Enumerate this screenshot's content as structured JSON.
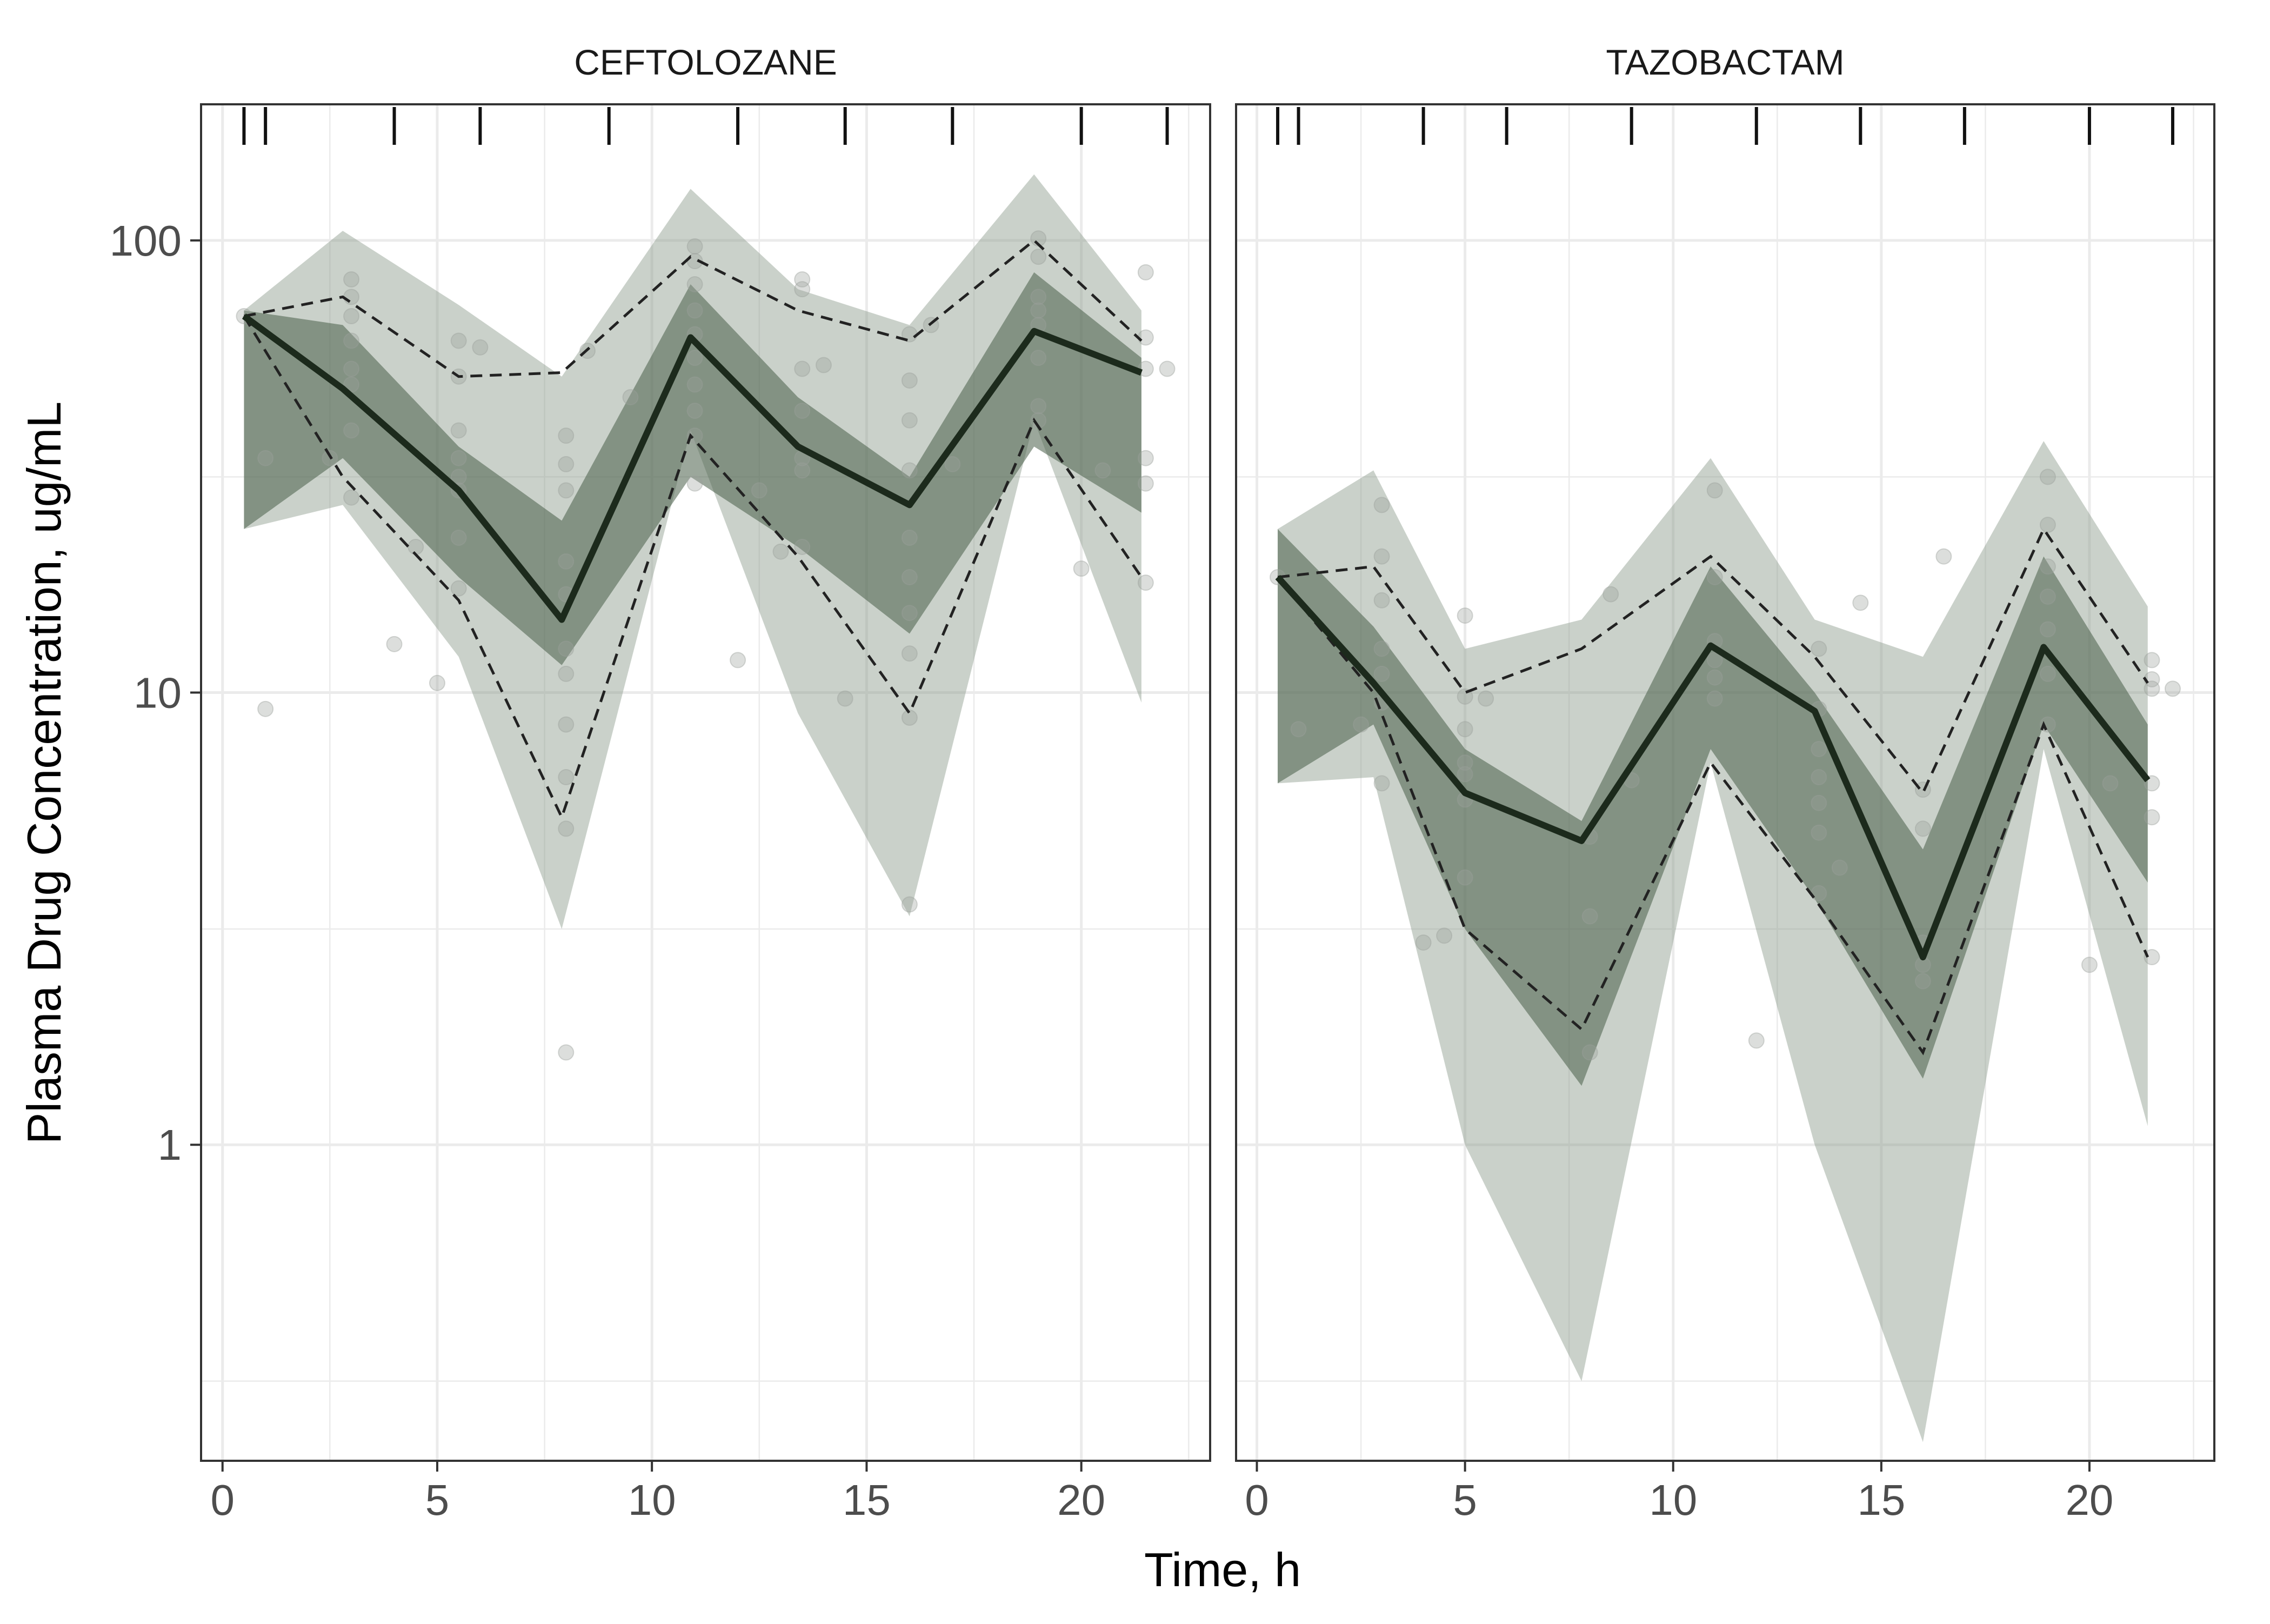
{
  "chart_data": {
    "type": "line",
    "title": "",
    "xlabel": "Time, h",
    "ylabel": "Plasma Drug Concentration, ug/mL",
    "xlim": [
      -0.5,
      23.0
    ],
    "ylim": [
      0.2,
      200
    ],
    "yscale": "log10",
    "x_ticks": [
      0,
      5,
      10,
      15,
      20
    ],
    "x_tick_labels": [
      "0",
      "5",
      "10",
      "15",
      "20"
    ],
    "y_ticks": [
      1,
      10,
      100
    ],
    "y_tick_labels": [
      "1",
      "10",
      "100"
    ],
    "y_minor_ticks": [
      0.3,
      3,
      30
    ],
    "colors": {
      "outer_band": "#8a9a8a",
      "inner_band": "#485e48",
      "median_line": "#1c2a1c",
      "points": "#9aa09a",
      "dashed": "#222222",
      "grid": "#ebebeb",
      "panel_border": "#333333"
    },
    "panels": [
      {
        "name": "CEFTOLOZANE",
        "rug_times": [
          0.5,
          1.0,
          4.0,
          6.0,
          9.0,
          12.0,
          14.5,
          17.0,
          20.0,
          22.0
        ],
        "times": [
          0.5,
          2.8,
          5.5,
          7.9,
          10.9,
          13.4,
          16.0,
          18.9,
          21.4
        ],
        "outer_lower": [
          23,
          26,
          12,
          3.0,
          38,
          9,
          3.2,
          40,
          9.5
        ],
        "outer_upper": [
          70,
          105,
          72,
          50,
          130,
          78,
          65,
          140,
          70
        ],
        "inner_lower_low": [
          23,
          33,
          18,
          11.5,
          30,
          21,
          13.5,
          35,
          25
        ],
        "inner_lower_high": [
          70,
          48,
          30,
          15,
          62,
          36,
          26,
          60,
          50
        ],
        "inner_upper_low": [
          70,
          48,
          30,
          15,
          62,
          36,
          26,
          60,
          50
        ],
        "inner_upper_high": [
          70,
          65,
          35,
          24,
          80,
          45,
          30,
          85,
          55
        ],
        "median": [
          68,
          47,
          28,
          14.5,
          61,
          35,
          26,
          63,
          51
        ],
        "obs_p5": [
          68,
          30,
          16,
          5.3,
          37,
          20,
          9,
          40,
          18
        ],
        "obs_p95": [
          68,
          75,
          50,
          51,
          92,
          70,
          60,
          100,
          60
        ],
        "observations": [
          [
            0.5,
            68
          ],
          [
            1.0,
            33
          ],
          [
            1.0,
            9.2
          ],
          [
            2.5,
            33
          ],
          [
            3.0,
            82
          ],
          [
            3.0,
            75
          ],
          [
            3.0,
            68
          ],
          [
            3.0,
            60
          ],
          [
            3.0,
            52
          ],
          [
            3.0,
            48
          ],
          [
            3.0,
            38
          ],
          [
            3.0,
            27
          ],
          [
            4.0,
            12.8
          ],
          [
            5.0,
            10.5
          ],
          [
            4.5,
            21
          ],
          [
            5.5,
            60
          ],
          [
            5.5,
            50
          ],
          [
            5.5,
            38
          ],
          [
            5.5,
            33
          ],
          [
            5.5,
            30
          ],
          [
            5.5,
            28
          ],
          [
            5.5,
            22
          ],
          [
            5.5,
            17
          ],
          [
            6.0,
            58
          ],
          [
            8.0,
            37
          ],
          [
            8.0,
            32
          ],
          [
            8.0,
            28
          ],
          [
            8.0,
            19.5
          ],
          [
            8.0,
            16.5
          ],
          [
            8.0,
            12.5
          ],
          [
            8.0,
            11
          ],
          [
            8.0,
            8.5
          ],
          [
            8.0,
            6.5
          ],
          [
            8.0,
            5.0
          ],
          [
            8.0,
            1.6
          ],
          [
            8.5,
            57
          ],
          [
            9.5,
            45
          ],
          [
            11.0,
            97
          ],
          [
            11.0,
            90
          ],
          [
            11.0,
            80
          ],
          [
            11.0,
            70
          ],
          [
            11.0,
            62
          ],
          [
            11.0,
            55
          ],
          [
            11.0,
            48
          ],
          [
            11.0,
            42
          ],
          [
            11.0,
            37
          ],
          [
            11.0,
            29
          ],
          [
            12.0,
            11.8
          ],
          [
            12.5,
            28
          ],
          [
            13.0,
            20.5
          ],
          [
            13.5,
            82
          ],
          [
            13.5,
            78
          ],
          [
            13.5,
            52
          ],
          [
            13.5,
            42
          ],
          [
            13.5,
            33
          ],
          [
            13.5,
            31
          ],
          [
            13.5,
            21
          ],
          [
            14.0,
            53
          ],
          [
            14.5,
            9.7
          ],
          [
            16.0,
            62
          ],
          [
            16.0,
            49
          ],
          [
            16.0,
            40
          ],
          [
            16.0,
            31
          ],
          [
            16.0,
            22
          ],
          [
            16.0,
            18
          ],
          [
            16.0,
            15
          ],
          [
            16.0,
            12.2
          ],
          [
            16.0,
            8.8
          ],
          [
            16.0,
            3.4
          ],
          [
            16.5,
            65
          ],
          [
            17.0,
            32
          ],
          [
            19.0,
            101
          ],
          [
            19.0,
            92
          ],
          [
            19.0,
            75
          ],
          [
            19.0,
            70
          ],
          [
            19.0,
            65
          ],
          [
            19.0,
            55
          ],
          [
            19.0,
            43
          ],
          [
            19.0,
            40
          ],
          [
            20.0,
            18.8
          ],
          [
            20.5,
            31
          ],
          [
            21.5,
            85
          ],
          [
            21.5,
            61
          ],
          [
            21.5,
            52
          ],
          [
            21.5,
            33
          ],
          [
            21.5,
            29
          ],
          [
            21.5,
            17.5
          ],
          [
            22.0,
            52
          ]
        ]
      },
      {
        "name": "TAZOBACTAM",
        "rug_times": [
          0.5,
          1.0,
          4.0,
          6.0,
          9.0,
          12.0,
          14.5,
          17.0,
          20.0,
          22.0
        ],
        "times": [
          0.5,
          2.8,
          5.0,
          7.8,
          10.9,
          13.4,
          16.0,
          18.9,
          21.4
        ],
        "outer_lower": [
          6.3,
          6.5,
          1.0,
          0.3,
          7.0,
          1.0,
          0.22,
          7.5,
          1.1
        ],
        "outer_upper": [
          23,
          31,
          12.5,
          14.5,
          33,
          14.5,
          12,
          36,
          15.5
        ],
        "inner_lower_low": [
          6.3,
          8.5,
          3.0,
          1.35,
          7.5,
          3.5,
          1.4,
          8.5,
          3.8
        ],
        "inner_lower_high": [
          18,
          11,
          6.0,
          4.7,
          12.5,
          9.0,
          2.6,
          12.5,
          6.4
        ],
        "inner_upper_low": [
          18,
          11,
          6.0,
          4.7,
          12.5,
          9.0,
          2.6,
          12.5,
          6.4
        ],
        "inner_upper_high": [
          23,
          14,
          7.5,
          5.2,
          19,
          10,
          4.5,
          20,
          8.5
        ],
        "median": [
          18,
          10.5,
          6.0,
          4.7,
          12.7,
          9.1,
          2.6,
          12.6,
          6.4
        ],
        "obs_p5": [
          18,
          10,
          3.0,
          1.8,
          7.0,
          3.5,
          1.6,
          8.5,
          2.6
        ],
        "obs_p95": [
          18,
          19,
          10,
          12.5,
          20,
          12,
          6.0,
          23,
          10.5
        ],
        "observations": [
          [
            0.5,
            18
          ],
          [
            1.0,
            8.3
          ],
          [
            2.5,
            8.5
          ],
          [
            3.0,
            26
          ],
          [
            3.0,
            20
          ],
          [
            3.0,
            16
          ],
          [
            3.0,
            12.5
          ],
          [
            3.0,
            11
          ],
          [
            3.0,
            9.5
          ],
          [
            3.0,
            6.3
          ],
          [
            4.0,
            2.8
          ],
          [
            4.5,
            2.9
          ],
          [
            5.0,
            14.8
          ],
          [
            5.0,
            9.8
          ],
          [
            5.0,
            8.3
          ],
          [
            5.0,
            7.0
          ],
          [
            5.0,
            6.6
          ],
          [
            5.0,
            5.8
          ],
          [
            5.0,
            3.9
          ],
          [
            5.5,
            9.7
          ],
          [
            8.0,
            4.8
          ],
          [
            8.0,
            3.2
          ],
          [
            8.0,
            1.6
          ],
          [
            8.5,
            16.5
          ],
          [
            9.0,
            6.4
          ],
          [
            11.0,
            28
          ],
          [
            11.0,
            18
          ],
          [
            11.0,
            13
          ],
          [
            11.0,
            11.8
          ],
          [
            11.0,
            10.8
          ],
          [
            11.0,
            9.7
          ],
          [
            12.0,
            1.7
          ],
          [
            13.5,
            12.5
          ],
          [
            13.5,
            9.2
          ],
          [
            13.5,
            7.5
          ],
          [
            13.5,
            6.5
          ],
          [
            13.5,
            5.7
          ],
          [
            13.5,
            4.9
          ],
          [
            13.5,
            3.6
          ],
          [
            14.0,
            4.1
          ],
          [
            14.5,
            15.8
          ],
          [
            16.0,
            6.1
          ],
          [
            16.0,
            5.0
          ],
          [
            16.0,
            2.8
          ],
          [
            16.0,
            2.5
          ],
          [
            16.0,
            2.3
          ],
          [
            16.5,
            20
          ],
          [
            19.0,
            30
          ],
          [
            19.0,
            23.5
          ],
          [
            19.0,
            19
          ],
          [
            19.0,
            16.3
          ],
          [
            19.0,
            13.8
          ],
          [
            19.0,
            11
          ],
          [
            19.0,
            8.5
          ],
          [
            20.0,
            2.5
          ],
          [
            20.5,
            6.3
          ],
          [
            21.5,
            11.8
          ],
          [
            21.5,
            10.7
          ],
          [
            21.5,
            10.2
          ],
          [
            21.5,
            6.3
          ],
          [
            21.5,
            5.3
          ],
          [
            21.5,
            2.6
          ],
          [
            22.0,
            10.2
          ]
        ]
      }
    ]
  }
}
